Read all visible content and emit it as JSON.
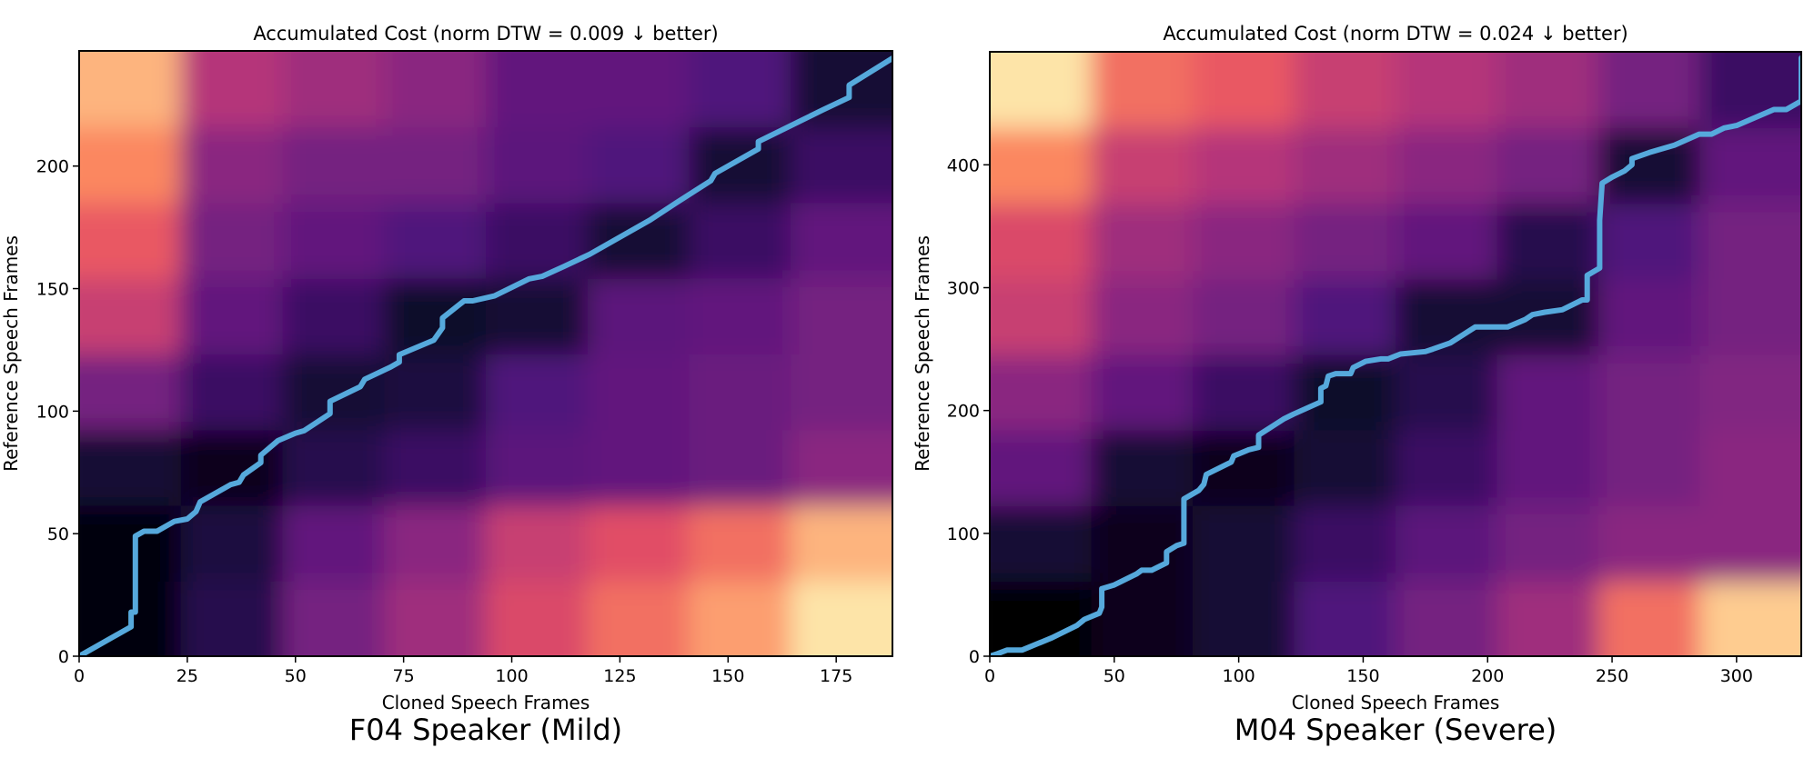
{
  "chart_data": [
    {
      "type": "heatmap",
      "title": "Accumulated Cost (norm DTW = 0.009 ↓ better)",
      "caption": "F04 Speaker (Mild)",
      "xlabel": "Cloned Speech Frames",
      "ylabel": "Reference Speech Frames",
      "xlim": [
        0,
        188
      ],
      "ylim": [
        0,
        247
      ],
      "xticks": [
        0,
        25,
        50,
        75,
        100,
        125,
        150,
        175
      ],
      "yticks": [
        0,
        50,
        100,
        150,
        200
      ],
      "colormap": "magma",
      "grid": false,
      "heatmap_levels_bottom_to_top": [
        [
          0.02,
          0.15,
          0.35,
          0.45,
          0.6,
          0.7,
          0.8,
          0.95
        ],
        [
          0.02,
          0.12,
          0.3,
          0.4,
          0.55,
          0.62,
          0.7,
          0.85
        ],
        [
          0.1,
          0.05,
          0.15,
          0.2,
          0.28,
          0.3,
          0.32,
          0.4
        ],
        [
          0.35,
          0.2,
          0.1,
          0.12,
          0.25,
          0.3,
          0.32,
          0.35
        ],
        [
          0.55,
          0.3,
          0.2,
          0.08,
          0.1,
          0.28,
          0.3,
          0.35
        ],
        [
          0.65,
          0.35,
          0.3,
          0.25,
          0.2,
          0.1,
          0.2,
          0.3
        ],
        [
          0.75,
          0.4,
          0.35,
          0.35,
          0.28,
          0.25,
          0.1,
          0.2
        ],
        [
          0.85,
          0.5,
          0.45,
          0.4,
          0.3,
          0.3,
          0.25,
          0.1
        ]
      ],
      "path_color": "#56a9dc",
      "warping_path": [
        [
          0,
          0
        ],
        [
          12,
          12
        ],
        [
          12,
          18
        ],
        [
          13,
          18
        ],
        [
          13,
          49
        ],
        [
          15,
          51
        ],
        [
          18,
          51
        ],
        [
          22,
          55
        ],
        [
          25,
          56
        ],
        [
          27,
          59
        ],
        [
          28,
          63
        ],
        [
          35,
          70
        ],
        [
          37,
          71
        ],
        [
          38,
          74
        ],
        [
          42,
          79
        ],
        [
          42,
          82
        ],
        [
          46,
          88
        ],
        [
          50,
          91
        ],
        [
          52,
          92
        ],
        [
          58,
          99
        ],
        [
          58,
          104
        ],
        [
          65,
          110
        ],
        [
          66,
          113
        ],
        [
          72,
          118
        ],
        [
          74,
          120
        ],
        [
          74,
          123
        ],
        [
          82,
          129
        ],
        [
          84,
          134
        ],
        [
          84,
          138
        ],
        [
          89,
          145
        ],
        [
          91,
          145
        ],
        [
          96,
          147
        ],
        [
          104,
          154
        ],
        [
          107,
          155
        ],
        [
          112,
          159
        ],
        [
          118,
          164
        ],
        [
          132,
          178
        ],
        [
          138,
          185
        ],
        [
          146,
          194
        ],
        [
          147,
          197
        ],
        [
          157,
          207
        ],
        [
          157,
          210
        ],
        [
          172,
          223
        ],
        [
          178,
          228
        ],
        [
          178,
          233
        ],
        [
          188,
          244
        ]
      ]
    },
    {
      "type": "heatmap",
      "title": "Accumulated Cost (norm DTW = 0.024 ↓ better)",
      "caption": "M04 Speaker (Severe)",
      "xlabel": "Cloned Speech Frames",
      "ylabel": "Reference Speech Frames",
      "xlim": [
        0,
        326
      ],
      "ylim": [
        0,
        492
      ],
      "xticks": [
        0,
        50,
        100,
        150,
        200,
        250,
        300
      ],
      "yticks": [
        0,
        100,
        200,
        300,
        400
      ],
      "colormap": "magma",
      "grid": false,
      "heatmap_levels_bottom_to_top": [
        [
          0.0,
          0.05,
          0.1,
          0.25,
          0.35,
          0.45,
          0.7,
          0.9
        ],
        [
          0.1,
          0.05,
          0.1,
          0.2,
          0.28,
          0.35,
          0.4,
          0.4
        ],
        [
          0.3,
          0.1,
          0.05,
          0.1,
          0.2,
          0.3,
          0.35,
          0.4
        ],
        [
          0.4,
          0.3,
          0.2,
          0.08,
          0.15,
          0.3,
          0.35,
          0.38
        ],
        [
          0.55,
          0.4,
          0.35,
          0.25,
          0.1,
          0.1,
          0.3,
          0.35
        ],
        [
          0.6,
          0.45,
          0.4,
          0.35,
          0.3,
          0.15,
          0.25,
          0.35
        ],
        [
          0.75,
          0.55,
          0.5,
          0.45,
          0.4,
          0.35,
          0.1,
          0.3
        ],
        [
          0.95,
          0.7,
          0.65,
          0.55,
          0.5,
          0.45,
          0.35,
          0.2
        ]
      ],
      "path_color": "#56a9dc",
      "warping_path": [
        [
          0,
          0
        ],
        [
          3,
          2
        ],
        [
          7,
          5
        ],
        [
          13,
          5
        ],
        [
          25,
          15
        ],
        [
          35,
          25
        ],
        [
          38,
          30
        ],
        [
          44,
          35
        ],
        [
          45,
          40
        ],
        [
          45,
          55
        ],
        [
          50,
          58
        ],
        [
          59,
          67
        ],
        [
          61,
          70
        ],
        [
          65,
          70
        ],
        [
          71,
          76
        ],
        [
          71,
          85
        ],
        [
          75,
          90
        ],
        [
          78,
          92
        ],
        [
          78,
          128
        ],
        [
          84,
          135
        ],
        [
          86,
          140
        ],
        [
          87,
          148
        ],
        [
          97,
          158
        ],
        [
          98,
          163
        ],
        [
          104,
          168
        ],
        [
          108,
          170
        ],
        [
          108,
          180
        ],
        [
          118,
          193
        ],
        [
          122,
          197
        ],
        [
          133,
          207
        ],
        [
          133,
          218
        ],
        [
          135,
          220
        ],
        [
          136,
          228
        ],
        [
          139,
          230
        ],
        [
          145,
          230
        ],
        [
          146,
          235
        ],
        [
          151,
          240
        ],
        [
          157,
          242
        ],
        [
          160,
          242
        ],
        [
          165,
          246
        ],
        [
          175,
          248
        ],
        [
          178,
          250
        ],
        [
          185,
          255
        ],
        [
          195,
          268
        ],
        [
          208,
          268
        ],
        [
          215,
          274
        ],
        [
          218,
          278
        ],
        [
          223,
          280
        ],
        [
          230,
          282
        ],
        [
          238,
          290
        ],
        [
          240,
          290
        ],
        [
          240,
          310
        ],
        [
          245,
          316
        ],
        [
          245,
          355
        ],
        [
          246,
          385
        ],
        [
          250,
          390
        ],
        [
          255,
          395
        ],
        [
          258,
          400
        ],
        [
          258,
          405
        ],
        [
          265,
          410
        ],
        [
          275,
          416
        ],
        [
          285,
          425
        ],
        [
          290,
          425
        ],
        [
          295,
          430
        ],
        [
          300,
          432
        ],
        [
          315,
          445
        ],
        [
          320,
          445
        ],
        [
          326,
          452
        ],
        [
          326,
          487
        ],
        [
          328,
          490
        ]
      ]
    }
  ]
}
